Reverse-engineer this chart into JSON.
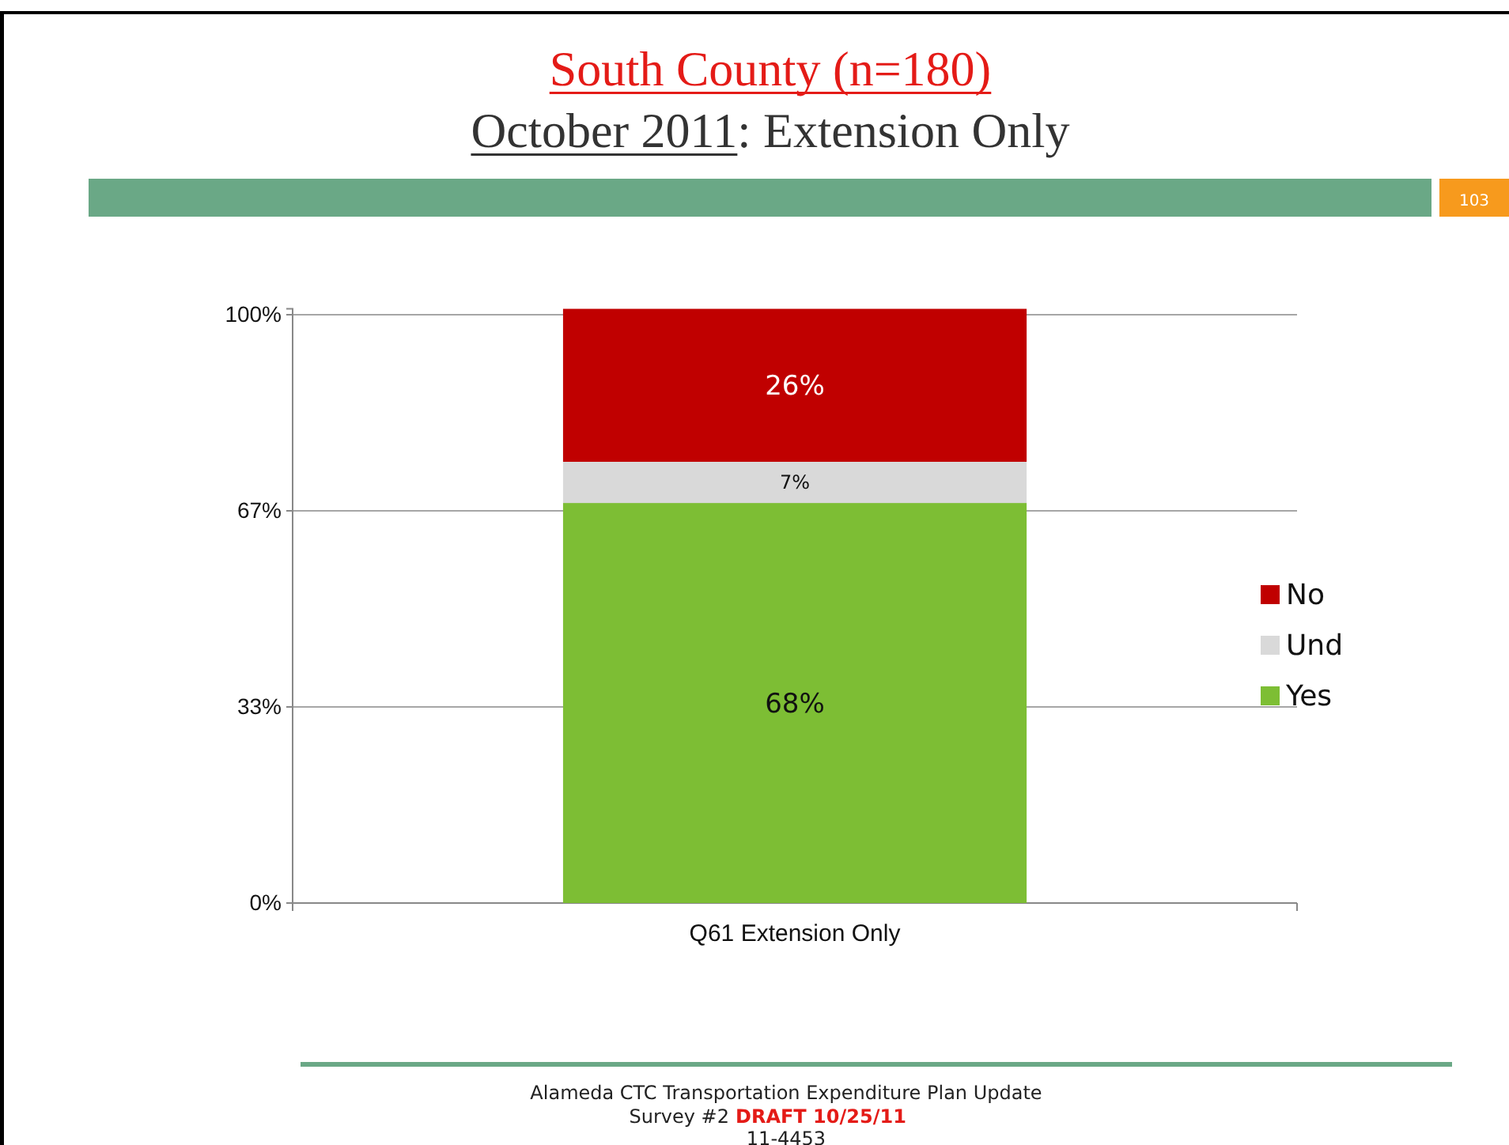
{
  "chart_data": {
    "type": "bar",
    "title": "South County (n=180)",
    "subtitle": "October 2011: Extension Only",
    "categories": [
      "Q61 Extension Only"
    ],
    "stacked": true,
    "series": [
      {
        "name": "Yes",
        "color": "#7dbe34",
        "values": [
          68
        ],
        "value_labels": [
          "68%"
        ]
      },
      {
        "name": "Und",
        "color": "#d9d9d9",
        "values": [
          7
        ],
        "value_labels": [
          "7%"
        ]
      },
      {
        "name": "No",
        "color": "#c00000",
        "values": [
          26
        ],
        "value_labels": [
          "26%"
        ]
      }
    ],
    "ylim": [
      0,
      101
    ],
    "yticks": [
      {
        "value": 0,
        "label": "0%"
      },
      {
        "value": 33.33,
        "label": "33%"
      },
      {
        "value": 66.67,
        "label": "67%"
      },
      {
        "value": 100,
        "label": "100%"
      }
    ],
    "grid": "y",
    "legend": "right",
    "annotations": [
      "103",
      "Alameda CTC Transportation Expenditure Plan Update",
      "Survey #2",
      "DRAFT 10/25/11",
      "11-4453"
    ]
  }
}
